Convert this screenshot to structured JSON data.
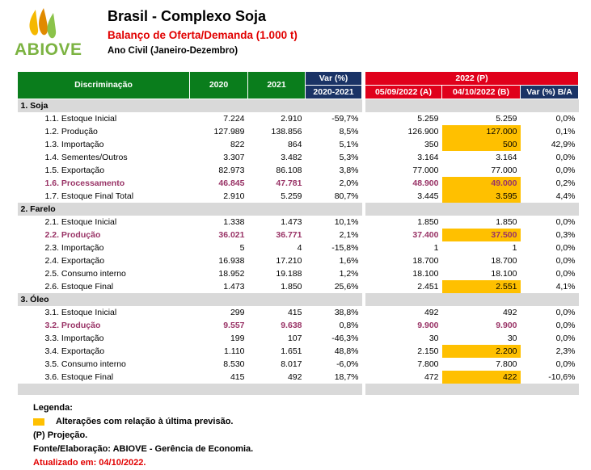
{
  "logo": {
    "text": "ABIOVE"
  },
  "header": {
    "title": "Brasil - Complexo Soja",
    "subtitle": "Balanço de Oferta/Demanda (1.000 t)",
    "period": "Ano Civil (Janeiro-Dezembro)"
  },
  "table": {
    "col_discriminacao": "Discriminação",
    "col_2020": "2020",
    "col_2021": "2021",
    "col_var": "Var (%)",
    "col_var_sub": "2020-2021",
    "col_2022": "2022 (P)",
    "col_a": "05/09/2022 (A)",
    "col_b": "04/10/2022 (B)",
    "col_var_ba": "Var (%) B/A",
    "sections": [
      {
        "title": "1. Soja",
        "rows": [
          {
            "label": "1.1. Estoque Inicial",
            "y2020": "7.224",
            "y2021": "2.910",
            "var": "-59,7%",
            "a": "5.259",
            "b": "5.259",
            "vba": "0,0%"
          },
          {
            "label": "1.2. Produção",
            "y2020": "127.989",
            "y2021": "138.856",
            "var": "8,5%",
            "a": "126.900",
            "b": "127.000",
            "vba": "0,1%"
          },
          {
            "label": "1.3. Importação",
            "y2020": "822",
            "y2021": "864",
            "var": "5,1%",
            "a": "350",
            "b": "500",
            "vba": "42,9%"
          },
          {
            "label": "1.4. Sementes/Outros",
            "y2020": "3.307",
            "y2021": "3.482",
            "var": "5,3%",
            "a": "3.164",
            "b": "3.164",
            "vba": "0,0%"
          },
          {
            "label": "1.5. Exportação",
            "y2020": "82.973",
            "y2021": "86.108",
            "var": "3,8%",
            "a": "77.000",
            "b": "77.000",
            "vba": "0,0%"
          },
          {
            "label": "1.6. Processamento",
            "y2020": "46.845",
            "y2021": "47.781",
            "var": "2,0%",
            "a": "48.900",
            "b": "49.000",
            "vba": "0,2%"
          },
          {
            "label": "1.7. Estoque Final Total",
            "y2020": "2.910",
            "y2021": "5.259",
            "var": "80,7%",
            "a": "3.445",
            "b": "3.595",
            "vba": "4,4%"
          }
        ]
      },
      {
        "title": "2. Farelo",
        "rows": [
          {
            "label": "2.1. Estoque Inicial",
            "y2020": "1.338",
            "y2021": "1.473",
            "var": "10,1%",
            "a": "1.850",
            "b": "1.850",
            "vba": "0,0%"
          },
          {
            "label": "2.2. Produção",
            "y2020": "36.021",
            "y2021": "36.771",
            "var": "2,1%",
            "a": "37.400",
            "b": "37.500",
            "vba": "0,3%"
          },
          {
            "label": "2.3. Importação",
            "y2020": "5",
            "y2021": "4",
            "var": "-15,8%",
            "a": "1",
            "b": "1",
            "vba": "0,0%"
          },
          {
            "label": "2.4. Exportação",
            "y2020": "16.938",
            "y2021": "17.210",
            "var": "1,6%",
            "a": "18.700",
            "b": "18.700",
            "vba": "0,0%"
          },
          {
            "label": "2.5. Consumo interno",
            "y2020": "18.952",
            "y2021": "19.188",
            "var": "1,2%",
            "a": "18.100",
            "b": "18.100",
            "vba": "0,0%"
          },
          {
            "label": "2.6. Estoque Final",
            "y2020": "1.473",
            "y2021": "1.850",
            "var": "25,6%",
            "a": "2.451",
            "b": "2.551",
            "vba": "4,1%"
          }
        ]
      },
      {
        "title": "3. Óleo",
        "rows": [
          {
            "label": "3.1. Estoque Inicial",
            "y2020": "299",
            "y2021": "415",
            "var": "38,8%",
            "a": "492",
            "b": "492",
            "vba": "0,0%"
          },
          {
            "label": "3.2. Produção",
            "y2020": "9.557",
            "y2021": "9.638",
            "var": "0,8%",
            "a": "9.900",
            "b": "9.900",
            "vba": "0,0%"
          },
          {
            "label": "3.3. Importação",
            "y2020": "199",
            "y2021": "107",
            "var": "-46,3%",
            "a": "30",
            "b": "30",
            "vba": "0,0%"
          },
          {
            "label": "3.4. Exportação",
            "y2020": "1.110",
            "y2021": "1.651",
            "var": "48,8%",
            "a": "2.150",
            "b": "2.200",
            "vba": "2,3%"
          },
          {
            "label": "3.5. Consumo interno",
            "y2020": "8.530",
            "y2021": "8.017",
            "var": "-6,0%",
            "a": "7.800",
            "b": "7.800",
            "vba": "0,0%"
          },
          {
            "label": "3.6. Estoque Final",
            "y2020": "415",
            "y2021": "492",
            "var": "18,7%",
            "a": "472",
            "b": "422",
            "vba": "-10,6%"
          }
        ]
      }
    ]
  },
  "legend": {
    "title": "Legenda:",
    "changes": "Alterações com relação à última previsão.",
    "projection": "(P) Projeção.",
    "source": "Fonte/Elaboração: ABIOVE - Gerência de Economia.",
    "updated": "Atualizado em: 04/10/2022."
  },
  "colors": {
    "header_green": "#0a7d1c",
    "header_navy": "#1a3366",
    "header_red": "#e0001b",
    "highlight_yellow": "#ffc000",
    "highlight_text": "#993366"
  }
}
